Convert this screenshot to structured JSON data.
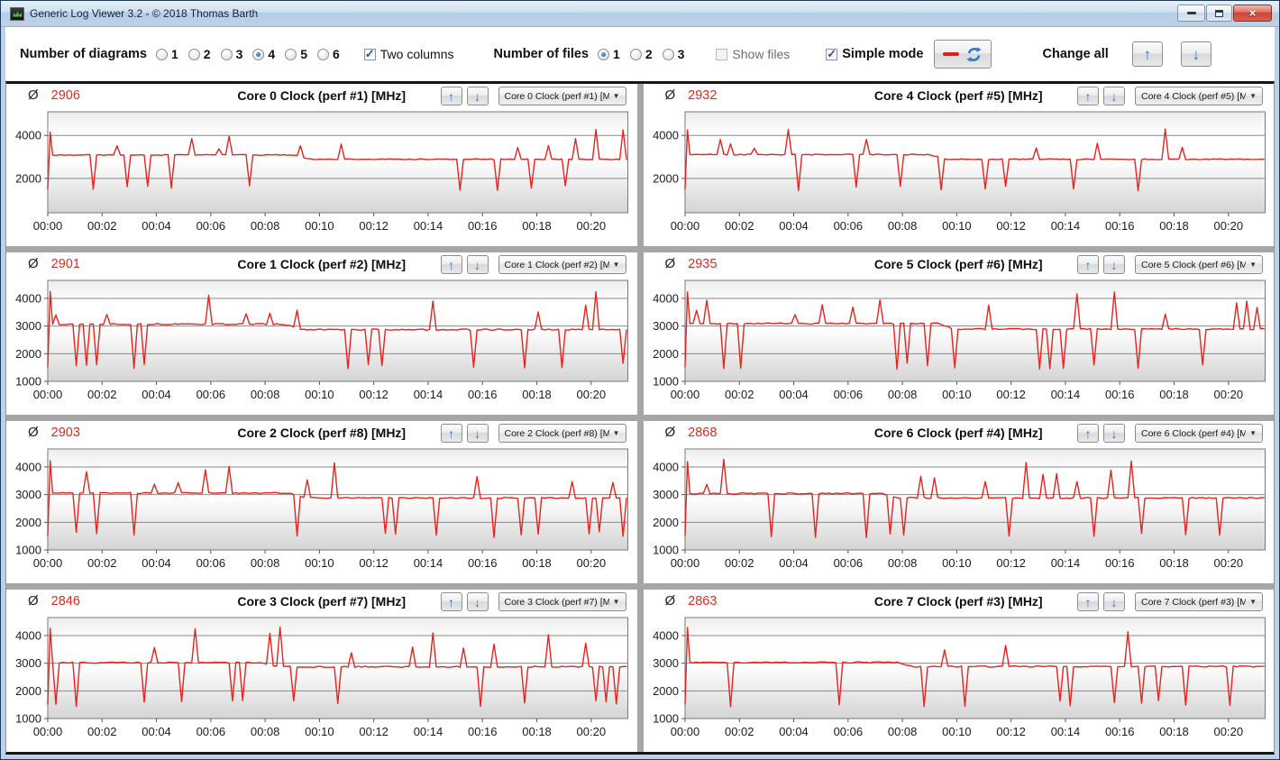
{
  "window": {
    "title": "Generic Log Viewer 3.2 - © 2018 Thomas Barth",
    "controls": {
      "close_glyph": "×"
    }
  },
  "toolbar": {
    "diagrams_label": "Number of diagrams",
    "diagram_options": [
      "1",
      "2",
      "3",
      "4",
      "5",
      "6"
    ],
    "diagrams_selected": "4",
    "two_columns_label": "Two columns",
    "two_columns_checked": true,
    "files_label": "Number of files",
    "file_options": [
      "1",
      "2",
      "3"
    ],
    "files_selected": "1",
    "show_files_label": "Show files",
    "show_files_checked": false,
    "simple_mode_label": "Simple mode",
    "simple_mode_checked": true,
    "change_all_label": "Change all",
    "up_arrow_glyph": "↑",
    "down_arrow_glyph": "↓"
  },
  "glyphs": {
    "avg_symbol": "Ø",
    "dropdown_caret": "▼",
    "up": "↑",
    "down": "↓"
  },
  "colors": {
    "line": "#e8231e",
    "avg_text": "#e02a21",
    "grid_line": "#8a8a8a",
    "plot_border": "#7a7a7a",
    "accent_blue": "#2f74c9"
  },
  "axis": {
    "x_ticks": [
      "00:00",
      "00:02",
      "00:04",
      "00:06",
      "00:08",
      "00:10",
      "00:12",
      "00:14",
      "00:16",
      "00:18",
      "00:20"
    ],
    "x_total_minutes": 21.35
  },
  "panel_order": [
    0,
    4,
    1,
    5,
    2,
    6,
    3,
    7
  ],
  "chart_data": {
    "note": "8 line charts of CPU core clock (MHz) vs time; values below are estimated generation parameters read from the pixels."
  },
  "charts": [
    {
      "avg": "2906",
      "title": "Core 0 Clock (perf #1) [MHz]",
      "dropdown": "Core 0 Clock (perf #1) [MH",
      "ylim": [
        400,
        5100
      ],
      "yticks": [
        2000,
        4000
      ],
      "gen": {
        "seed": 7,
        "base1": 3090,
        "base2": 2890,
        "switch_min": 9.4,
        "p_up": 0.085,
        "p_down": 0.075,
        "hi": [
          3350,
          4330
        ],
        "lo": [
          1430,
          1660
        ]
      }
    },
    {
      "avg": "2901",
      "title": "Core 1 Clock (perf #2) [MHz]",
      "dropdown": "Core 1 Clock (perf #2) [MH",
      "ylim": [
        1000,
        4650
      ],
      "yticks": [
        1000,
        2000,
        3000,
        4000
      ],
      "gen": {
        "seed": 13,
        "base1": 3070,
        "base2": 2870,
        "switch_min": 9.0,
        "p_up": 0.09,
        "p_down": 0.08,
        "hi": [
          3350,
          4330
        ],
        "lo": [
          1430,
          1660
        ]
      }
    },
    {
      "avg": "2903",
      "title": "Core 2 Clock (perf #8) [MHz]",
      "dropdown": "Core 2 Clock (perf #8) [MH",
      "ylim": [
        1000,
        4650
      ],
      "yticks": [
        1000,
        2000,
        3000,
        4000
      ],
      "gen": {
        "seed": 21,
        "base1": 3060,
        "base2": 2880,
        "switch_min": 9.2,
        "p_up": 0.075,
        "p_down": 0.095,
        "hi": [
          3350,
          4330
        ],
        "lo": [
          1430,
          1660
        ]
      }
    },
    {
      "avg": "2846",
      "title": "Core 3 Clock (perf #7) [MHz]",
      "dropdown": "Core 3 Clock (perf #7) [MH",
      "ylim": [
        1000,
        4650
      ],
      "yticks": [
        1000,
        2000,
        3000,
        4000
      ],
      "gen": {
        "seed": 34,
        "base1": 3020,
        "base2": 2870,
        "switch_min": 8.2,
        "p_up": 0.055,
        "p_down": 0.1,
        "hi": [
          3350,
          4330
        ],
        "lo": [
          1430,
          1660
        ]
      }
    },
    {
      "avg": "2932",
      "title": "Core 4 Clock (perf #5) [MHz]",
      "dropdown": "Core 4 Clock (perf #5) [MH",
      "ylim": [
        400,
        5100
      ],
      "yticks": [
        2000,
        4000
      ],
      "gen": {
        "seed": 42,
        "base1": 3110,
        "base2": 2890,
        "switch_min": 9.3,
        "p_up": 0.1,
        "p_down": 0.07,
        "hi": [
          3350,
          4330
        ],
        "lo": [
          1430,
          1660
        ]
      }
    },
    {
      "avg": "2935",
      "title": "Core 5 Clock (perf #6) [MHz]",
      "dropdown": "Core 5 Clock (perf #6) [MH",
      "ylim": [
        1000,
        4650
      ],
      "yticks": [
        1000,
        2000,
        3000,
        4000
      ],
      "gen": {
        "seed": 55,
        "base1": 3090,
        "base2": 2890,
        "switch_min": 9.6,
        "p_up": 0.095,
        "p_down": 0.075,
        "hi": [
          3350,
          4330
        ],
        "lo": [
          1430,
          1660
        ]
      }
    },
    {
      "avg": "2868",
      "title": "Core 6 Clock (perf #4) [MHz]",
      "dropdown": "Core 6 Clock (perf #4) [MH",
      "ylim": [
        1000,
        4650
      ],
      "yticks": [
        1000,
        2000,
        3000,
        4000
      ],
      "gen": {
        "seed": 63,
        "base1": 3040,
        "base2": 2880,
        "switch_min": 7.6,
        "p_up": 0.06,
        "p_down": 0.1,
        "hi": [
          3350,
          4330
        ],
        "lo": [
          1430,
          1660
        ]
      }
    },
    {
      "avg": "2863",
      "title": "Core 7 Clock (perf #3) [MHz]",
      "dropdown": "Core 7 Clock (perf #3) [MH",
      "ylim": [
        1000,
        4650
      ],
      "yticks": [
        1000,
        2000,
        3000,
        4000
      ],
      "gen": {
        "seed": 71,
        "base1": 3030,
        "base2": 2880,
        "switch_min": 8.1,
        "p_up": 0.06,
        "p_down": 0.1,
        "hi": [
          3350,
          4330
        ],
        "lo": [
          1430,
          1660
        ]
      }
    }
  ]
}
